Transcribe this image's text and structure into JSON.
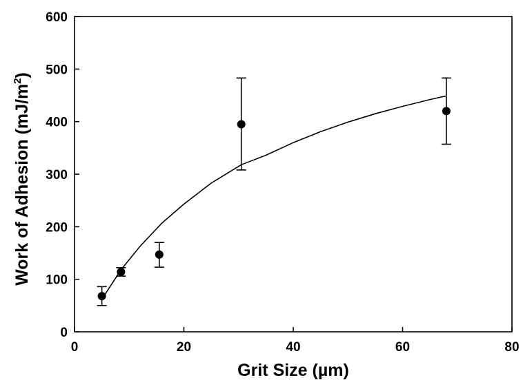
{
  "chart_data": {
    "type": "scatter",
    "xlabel": "Grit Size (µm)",
    "ylabel_main": "Work of Adhesion (mJ/m",
    "ylabel_sup": "2",
    "ylabel_end": ")",
    "xlim": [
      0,
      80
    ],
    "ylim": [
      0,
      600
    ],
    "x_ticks": [
      0,
      20,
      40,
      60,
      80
    ],
    "y_ticks": [
      0,
      100,
      200,
      300,
      400,
      500,
      600
    ],
    "grid": false,
    "points": [
      {
        "x": 5,
        "y": 68,
        "err_low": 50,
        "err_high": 86
      },
      {
        "x": 8.5,
        "y": 114,
        "err_low": 106,
        "err_high": 122
      },
      {
        "x": 15.5,
        "y": 147,
        "err_low": 123,
        "err_high": 170
      },
      {
        "x": 30.5,
        "y": 395,
        "err_low": 308,
        "err_high": 483
      },
      {
        "x": 68,
        "y": 420,
        "err_low": 357,
        "err_high": 483
      }
    ],
    "fit_curve": {
      "x": [
        5.5,
        8.5,
        12,
        16,
        20,
        25,
        30.5,
        35,
        40,
        45,
        50,
        55,
        60,
        65,
        68
      ],
      "y": [
        70,
        118,
        163,
        207,
        243,
        283,
        318,
        336,
        360,
        381,
        399,
        415,
        429,
        442,
        449
      ]
    }
  }
}
